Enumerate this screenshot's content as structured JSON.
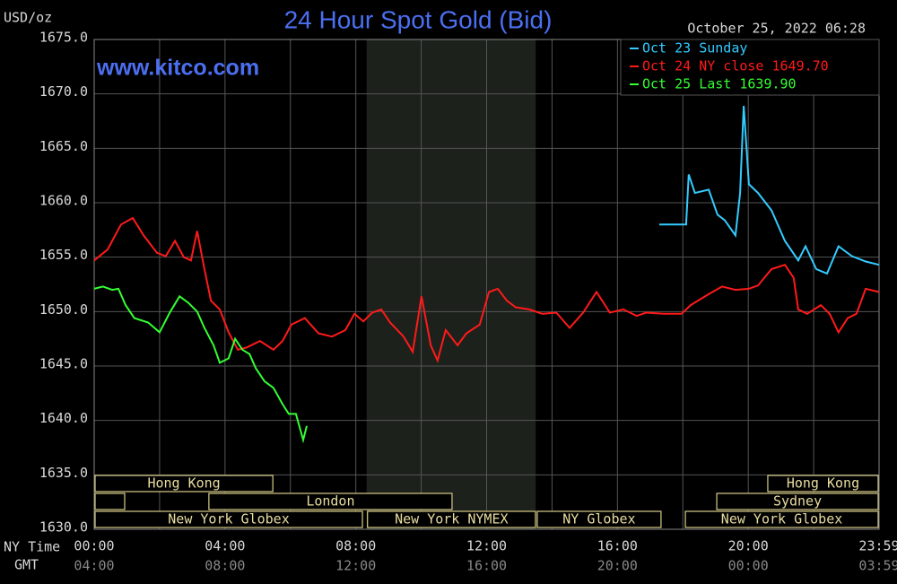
{
  "chart_data": {
    "type": "line",
    "title": "24 Hour Spot Gold (Bid)",
    "unit_label": "USD/oz",
    "timestamp": "October 25, 2022 06:28",
    "watermark": "www.kitco.com",
    "x_row_labels": [
      "NY Time",
      "GMT"
    ],
    "xlim": [
      0,
      24
    ],
    "ylim": [
      1630,
      1675
    ],
    "xticks": [
      {
        "value": 0,
        "label": "00:00"
      },
      {
        "value": 4,
        "label": "04:00"
      },
      {
        "value": 8,
        "label": "08:00"
      },
      {
        "value": 12,
        "label": "12:00"
      },
      {
        "value": 16,
        "label": "16:00"
      },
      {
        "value": 20,
        "label": "20:00"
      },
      {
        "value": 24,
        "label": "23:59"
      }
    ],
    "gmt_labels": [
      "04:00",
      "08:00",
      "12:00",
      "16:00",
      "20:00",
      "00:00",
      "03:59"
    ],
    "x_minor_ticks": [
      2,
      6,
      10,
      14,
      18,
      22
    ],
    "yticks": [
      {
        "value": 1630,
        "label": "1630.0"
      },
      {
        "value": 1635,
        "label": "1635.0"
      },
      {
        "value": 1640,
        "label": "1640.0"
      },
      {
        "value": 1645,
        "label": "1645.0"
      },
      {
        "value": 1650,
        "label": "1650.0"
      },
      {
        "value": 1655,
        "label": "1655.0"
      },
      {
        "value": 1660,
        "label": "1660.0"
      },
      {
        "value": 1665,
        "label": "1665.0"
      },
      {
        "value": 1670,
        "label": "1670.0"
      },
      {
        "value": 1675,
        "label": "1675.0"
      }
    ],
    "grid": true,
    "shaded_region": [
      8.33,
      13.5
    ],
    "sessions": [
      {
        "label": "Hong Kong",
        "row": 0,
        "start": 0,
        "end": 5.49
      },
      {
        "label": "Hong Kong",
        "row": 0,
        "start": 20.57,
        "end": 24
      },
      {
        "row": 1,
        "start": 0,
        "end": 0.96
      },
      {
        "label": "London",
        "row": 1,
        "start": 3.48,
        "end": 10.97
      },
      {
        "label": "Sydney",
        "row": 1,
        "start": 19.01,
        "end": 24
      },
      {
        "label": "New York Globex",
        "row": 2,
        "start": 0,
        "end": 8.23
      },
      {
        "label": "New York NYMEX",
        "row": 2,
        "start": 8.33,
        "end": 13.52
      },
      {
        "label": "NY Globex",
        "row": 2,
        "start": 13.52,
        "end": 17.36
      },
      {
        "label": "New York Globex",
        "row": 2,
        "start": 18.05,
        "end": 24
      }
    ],
    "series": [
      {
        "name": "Oct 23 Sunday",
        "color": "#33ccff",
        "x": [
          17.28,
          18.1,
          18.18,
          18.37,
          18.79,
          19.06,
          19.28,
          19.61,
          19.75,
          19.86,
          20.02,
          20.3,
          20.71,
          21.12,
          21.53,
          21.75,
          22.08,
          22.41,
          22.76,
          23.17,
          23.59,
          24.0
        ],
        "values": [
          1658.0,
          1658.0,
          1662.6,
          1660.9,
          1661.2,
          1658.9,
          1658.4,
          1657.0,
          1660.9,
          1668.9,
          1661.7,
          1660.9,
          1659.3,
          1656.5,
          1654.7,
          1656.0,
          1653.9,
          1653.5,
          1656.0,
          1655.1,
          1654.6,
          1654.3
        ]
      },
      {
        "name": "Oct 24 NY close 1649.70",
        "color": "#ff1a1a",
        "x": [
          0,
          0.41,
          0.82,
          1.18,
          1.51,
          1.92,
          2.19,
          2.47,
          2.74,
          2.96,
          3.15,
          3.37,
          3.57,
          3.84,
          4.11,
          4.39,
          4.66,
          5.07,
          5.48,
          5.76,
          6.03,
          6.44,
          6.86,
          7.27,
          7.68,
          7.96,
          8.23,
          8.5,
          8.78,
          9.05,
          9.46,
          9.74,
          10.01,
          10.29,
          10.5,
          10.75,
          11.11,
          11.38,
          11.79,
          12.07,
          12.34,
          12.62,
          12.89,
          13.3,
          13.71,
          14.13,
          14.54,
          14.95,
          15.36,
          15.77,
          16.18,
          16.59,
          16.87,
          17.42,
          17.96,
          18.24,
          18.79,
          19.2,
          19.61,
          20.02,
          20.3,
          20.71,
          21.12,
          21.39,
          21.53,
          21.8,
          22.22,
          22.49,
          22.76,
          23.04,
          23.31,
          23.59,
          24.0
        ],
        "values": [
          1654.7,
          1655.7,
          1658.0,
          1658.6,
          1657.0,
          1655.4,
          1655.1,
          1656.5,
          1655.0,
          1654.7,
          1657.4,
          1653.9,
          1651.0,
          1650.2,
          1648.1,
          1646.5,
          1646.7,
          1647.3,
          1646.5,
          1647.3,
          1648.8,
          1649.4,
          1648.0,
          1647.7,
          1648.3,
          1649.8,
          1649.1,
          1649.9,
          1650.2,
          1649.0,
          1647.7,
          1646.3,
          1651.4,
          1646.9,
          1645.5,
          1648.3,
          1646.9,
          1648.0,
          1648.8,
          1651.8,
          1652.1,
          1651.0,
          1650.4,
          1650.2,
          1649.8,
          1649.9,
          1648.5,
          1649.9,
          1651.8,
          1649.9,
          1650.2,
          1649.6,
          1649.9,
          1649.8,
          1649.8,
          1650.6,
          1651.6,
          1652.3,
          1652.0,
          1652.1,
          1652.4,
          1653.9,
          1654.3,
          1653.1,
          1650.2,
          1649.8,
          1650.6,
          1649.8,
          1648.1,
          1649.4,
          1649.8,
          1652.1,
          1651.8
        ]
      },
      {
        "name": "Oct 25 Last 1639.90",
        "color": "#33ff33",
        "x": [
          0,
          0.27,
          0.55,
          0.74,
          0.96,
          1.23,
          1.65,
          2.0,
          2.33,
          2.61,
          2.88,
          3.15,
          3.37,
          3.65,
          3.84,
          4.11,
          4.31,
          4.53,
          4.75,
          4.94,
          5.21,
          5.48,
          5.76,
          5.95,
          6.17,
          6.39,
          6.5
        ],
        "values": [
          1652.1,
          1652.3,
          1652.0,
          1652.1,
          1650.6,
          1649.4,
          1649.0,
          1648.1,
          1650.0,
          1651.4,
          1650.8,
          1650.0,
          1648.5,
          1646.9,
          1645.3,
          1645.7,
          1647.5,
          1646.5,
          1646.1,
          1644.8,
          1643.6,
          1643.0,
          1641.5,
          1640.6,
          1640.6,
          1638.2,
          1639.5
        ]
      }
    ]
  }
}
